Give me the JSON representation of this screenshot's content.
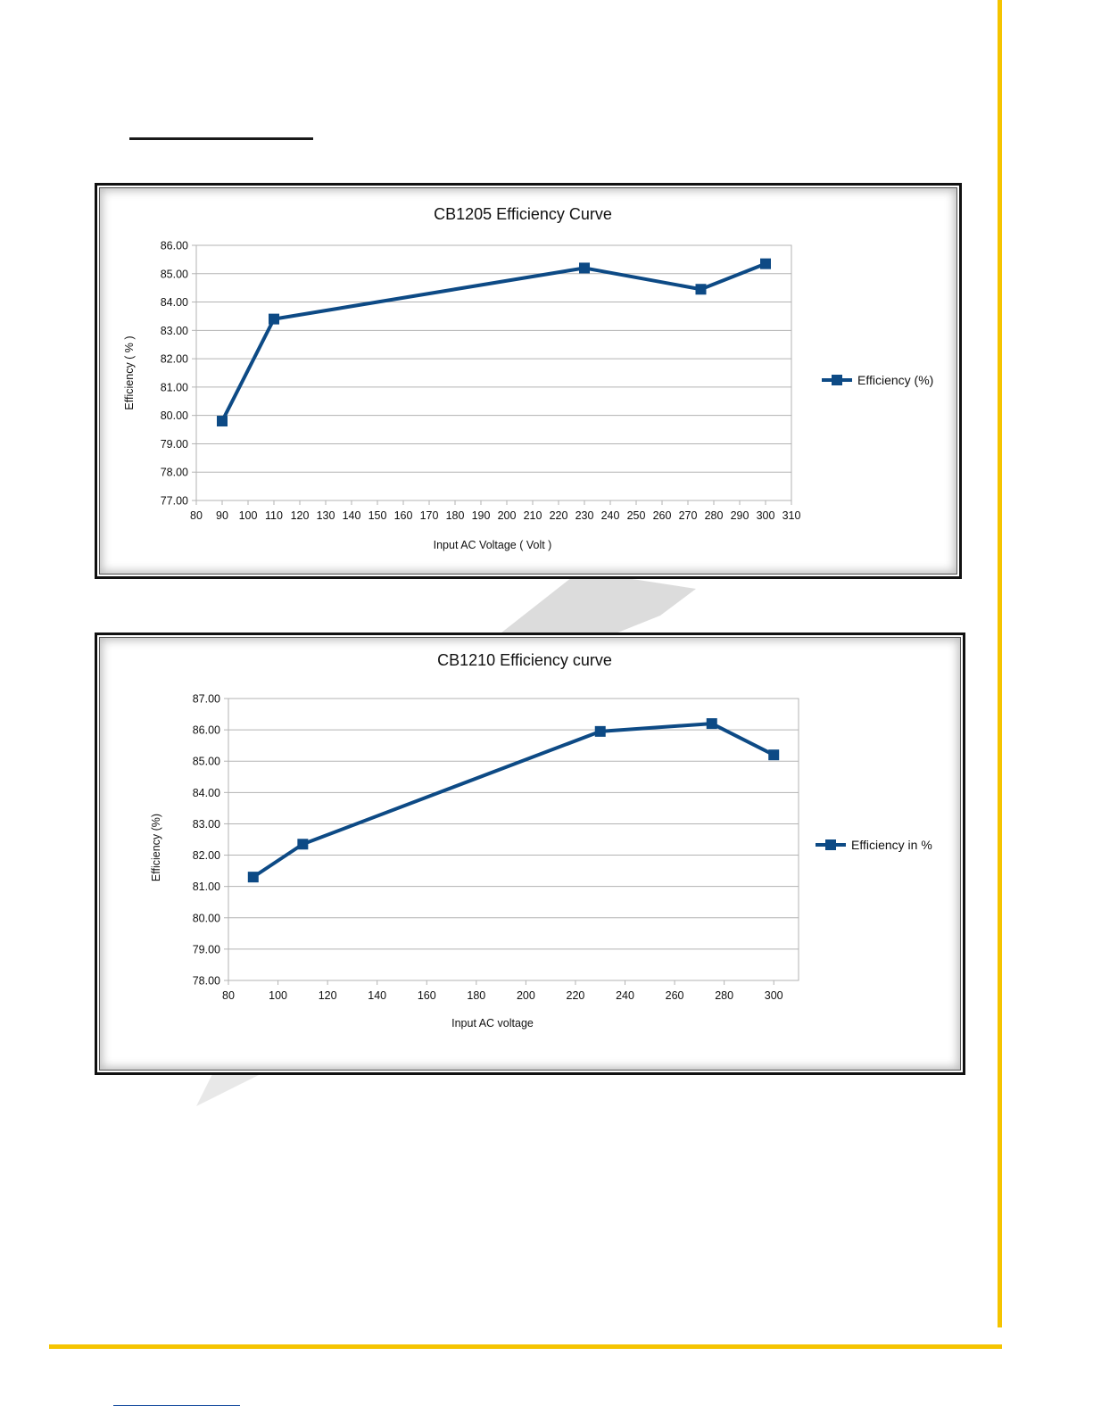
{
  "colors": {
    "accent": "#f5c400",
    "series": "#0d4a85",
    "grid": "#b3b3b3"
  },
  "chart_data": [
    {
      "type": "line",
      "title": "CB1205 Efficiency Curve",
      "xlabel": "Input AC Voltage ( Volt )",
      "ylabel": "Efficiency ( % )",
      "xlim": [
        80,
        310
      ],
      "ylim": [
        77,
        86
      ],
      "x_ticks": [
        "80",
        "90",
        "100",
        "110",
        "120",
        "130",
        "140",
        "150",
        "160",
        "170",
        "180",
        "190",
        "200",
        "210",
        "220",
        "230",
        "240",
        "250",
        "260",
        "270",
        "280",
        "290",
        "300",
        "310"
      ],
      "y_ticks": [
        "86.00",
        "85.00",
        "84.00",
        "83.00",
        "82.00",
        "81.00",
        "80.00",
        "79.00",
        "78.00",
        "77.00"
      ],
      "grid": "horizontal",
      "legend_position": "right",
      "series": [
        {
          "name": "Efficiency (%)",
          "x": [
            90,
            110,
            230,
            275,
            300
          ],
          "y": [
            79.8,
            83.4,
            85.2,
            84.45,
            85.35
          ]
        }
      ]
    },
    {
      "type": "line",
      "title": "CB1210 Efficiency curve",
      "xlabel": "Input AC voltage",
      "ylabel": "Efficiency (%)",
      "xlim": [
        80,
        310
      ],
      "ylim": [
        78,
        87
      ],
      "x_ticks": [
        "80",
        "100",
        "120",
        "140",
        "160",
        "180",
        "200",
        "220",
        "240",
        "260",
        "280",
        "300"
      ],
      "y_ticks": [
        "87.00",
        "86.00",
        "85.00",
        "84.00",
        "83.00",
        "82.00",
        "81.00",
        "80.00",
        "79.00",
        "78.00"
      ],
      "grid": "horizontal",
      "legend_position": "right",
      "series": [
        {
          "name": "Efficiency in %",
          "x": [
            90,
            110,
            230,
            275,
            300
          ],
          "y": [
            81.3,
            82.35,
            85.95,
            86.2,
            85.2
          ]
        }
      ]
    }
  ]
}
